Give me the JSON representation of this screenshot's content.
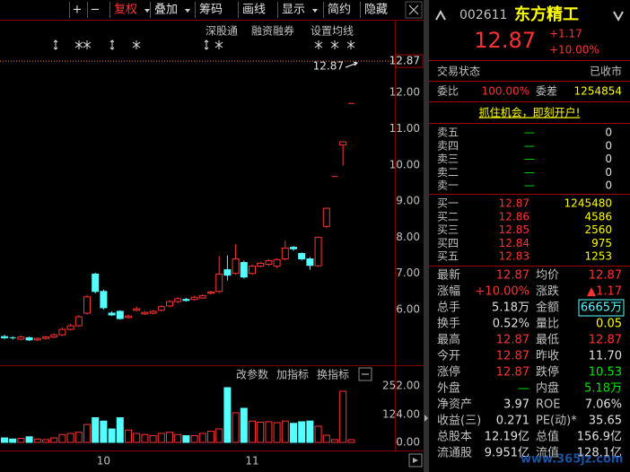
{
  "toolbar": [
    "+",
    "−",
    "复权",
    "叠加",
    "筹码",
    "画线",
    "显示",
    "简约",
    "隐藏"
  ],
  "chart_tools": [
    "深股通",
    "融资融券",
    "设置均线"
  ],
  "volume_tools": [
    "改参数",
    "加指标",
    "换指标"
  ],
  "chart_data": [
    {
      "type": "candlestick",
      "categories": [
        null,
        null,
        null,
        null,
        null,
        null,
        null,
        null,
        null,
        null,
        null,
        null,
        "10",
        null,
        null,
        null,
        null,
        null,
        null,
        null,
        null,
        null,
        null,
        null,
        null,
        null,
        null,
        null,
        null,
        null,
        "11",
        null,
        null,
        null,
        null,
        null,
        null,
        null,
        null,
        null,
        null,
        null,
        null
      ],
      "open": [
        5.25,
        5.22,
        5.18,
        5.22,
        5.16,
        5.2,
        5.24,
        5.3,
        5.45,
        5.55,
        5.9,
        6.98,
        6.5,
        5.9,
        5.95,
        5.78,
        5.98,
        5.88,
        5.9,
        5.98,
        6.1,
        6.22,
        6.28,
        6.28,
        6.32,
        6.45,
        6.5,
        7.1,
        7.0,
        7.3,
        7.0,
        7.2,
        7.25,
        7.2,
        7.4,
        7.72,
        7.55,
        7.4,
        7.21,
        8.3,
        9.68,
        10.55,
        11.7
      ],
      "high": [
        5.3,
        5.26,
        5.28,
        5.25,
        5.23,
        5.27,
        5.34,
        5.5,
        5.6,
        5.85,
        6.4,
        7.02,
        6.55,
        5.95,
        5.98,
        5.86,
        6.08,
        5.95,
        5.98,
        6.12,
        6.26,
        6.34,
        6.32,
        6.38,
        6.42,
        6.52,
        7.48,
        7.5,
        7.8,
        7.35,
        7.25,
        7.32,
        7.4,
        7.42,
        7.9,
        7.76,
        7.58,
        7.45,
        8.02,
        8.82,
        9.68,
        10.64,
        11.7
      ],
      "low": [
        5.18,
        5.17,
        5.15,
        5.13,
        5.13,
        5.17,
        5.21,
        5.27,
        5.42,
        5.52,
        5.86,
        6.45,
        6.0,
        5.82,
        5.72,
        5.74,
        5.95,
        5.85,
        5.87,
        5.95,
        6.06,
        6.18,
        6.22,
        6.25,
        6.29,
        6.42,
        6.46,
        6.8,
        6.96,
        6.86,
        6.96,
        7.16,
        7.2,
        7.15,
        7.36,
        7.62,
        7.36,
        7.1,
        7.18,
        8.26,
        9.68,
        9.98,
        11.7
      ],
      "close": [
        5.22,
        5.2,
        5.24,
        5.16,
        5.2,
        5.24,
        5.3,
        5.45,
        5.55,
        5.8,
        6.35,
        6.5,
        6.05,
        5.85,
        5.75,
        5.82,
        6.02,
        5.92,
        5.95,
        6.08,
        6.22,
        6.3,
        6.25,
        6.34,
        6.38,
        6.48,
        6.98,
        6.95,
        7.4,
        6.9,
        7.2,
        7.28,
        7.35,
        7.38,
        7.7,
        7.68,
        7.4,
        7.22,
        8.0,
        8.8,
        9.68,
        10.64,
        11.7
      ],
      "ylim": [
        4.46,
        13.94
      ],
      "yticks": [
        {
          "value": 6,
          "label": "6.00"
        },
        {
          "value": 7,
          "label": "7.00"
        },
        {
          "value": 8,
          "label": "8.00"
        },
        {
          "value": 9,
          "label": "9.00"
        },
        {
          "value": 10,
          "label": "10.00"
        },
        {
          "value": 11,
          "label": "11.00"
        },
        {
          "value": 12,
          "label": "12.00"
        }
      ],
      "last_price": 12.87,
      "up_color": "#ff3232",
      "down_color": "#54ffff"
    },
    {
      "type": "bar",
      "values": [
        20,
        15,
        18,
        25,
        15,
        12,
        20,
        35,
        40,
        45,
        80,
        110,
        95,
        60,
        110,
        55,
        40,
        35,
        30,
        40,
        45,
        35,
        30,
        30,
        40,
        50,
        60,
        244,
        132,
        152,
        95,
        90,
        92,
        88,
        95,
        85,
        92,
        95,
        72,
        32,
        12,
        228,
        12
      ],
      "ylim": [
        -28,
        332
      ],
      "yticks": [
        {
          "value": 252,
          "label": "252.00"
        },
        {
          "value": 124,
          "label": "124.00"
        },
        {
          "value": 0,
          "label": "0.00"
        }
      ]
    }
  ],
  "quote": {
    "code": "002611",
    "name": "东方精工",
    "price": "12.87",
    "change": "+1.17",
    "change_pct": "+10.00%"
  },
  "status": [
    "交易状态",
    "已收市"
  ],
  "order_ratio": [
    "委比",
    "100.00%",
    "委差",
    "1254854"
  ],
  "promo": "抓住机会，即刻开户!",
  "asks": [
    [
      "卖五",
      "—",
      "0"
    ],
    [
      "卖四",
      "—",
      "0"
    ],
    [
      "卖三",
      "—",
      "0"
    ],
    [
      "卖二",
      "—",
      "0"
    ],
    [
      "卖一",
      "—",
      "0"
    ]
  ],
  "bids": [
    [
      "买一",
      "12.87",
      "1245480"
    ],
    [
      "买二",
      "12.86",
      "4586"
    ],
    [
      "买三",
      "12.85",
      "2560"
    ],
    [
      "买四",
      "12.84",
      "975"
    ],
    [
      "买五",
      "12.83",
      "1253"
    ]
  ],
  "stats": [
    [
      "最新",
      "12.87",
      "均价",
      "12.87"
    ],
    [
      "涨幅",
      "+10.00%",
      "涨跌",
      "▲1.17"
    ],
    [
      "总手",
      "5.18万",
      "金额",
      "6665万"
    ],
    [
      "换手",
      "0.52%",
      "量比",
      "0.05"
    ],
    [
      "最高",
      "12.87",
      "最低",
      "12.87"
    ],
    [
      "今开",
      "12.87",
      "昨收",
      "11.70"
    ],
    [
      "涨停",
      "12.87",
      "跌停",
      "10.53"
    ],
    [
      "外盘",
      "—",
      "内盘",
      "5.18万"
    ],
    [
      "净资产",
      "3.97",
      "ROE",
      "7.06%"
    ],
    [
      "收益(三)",
      "0.271",
      "PE(动)*",
      "35.65"
    ],
    [
      "总股本",
      "12.19亿",
      "总值",
      "156.9亿"
    ],
    [
      "流通股",
      "9.951亿",
      "流值",
      "128.1亿"
    ]
  ],
  "watermark": "www.365jz.com"
}
